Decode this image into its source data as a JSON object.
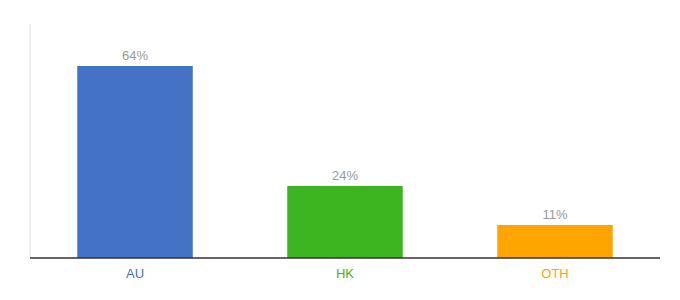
{
  "chart_data": {
    "type": "bar",
    "categories": [
      "AU",
      "HK",
      "OTH"
    ],
    "values": [
      64,
      24,
      11
    ],
    "value_labels": [
      "64%",
      "24%",
      "11%"
    ],
    "data_labels": true,
    "colors": [
      "#4472C4",
      "#3CB521",
      "#FFA500"
    ],
    "ylim": [
      0,
      78
    ],
    "tick_labels": "x"
  }
}
